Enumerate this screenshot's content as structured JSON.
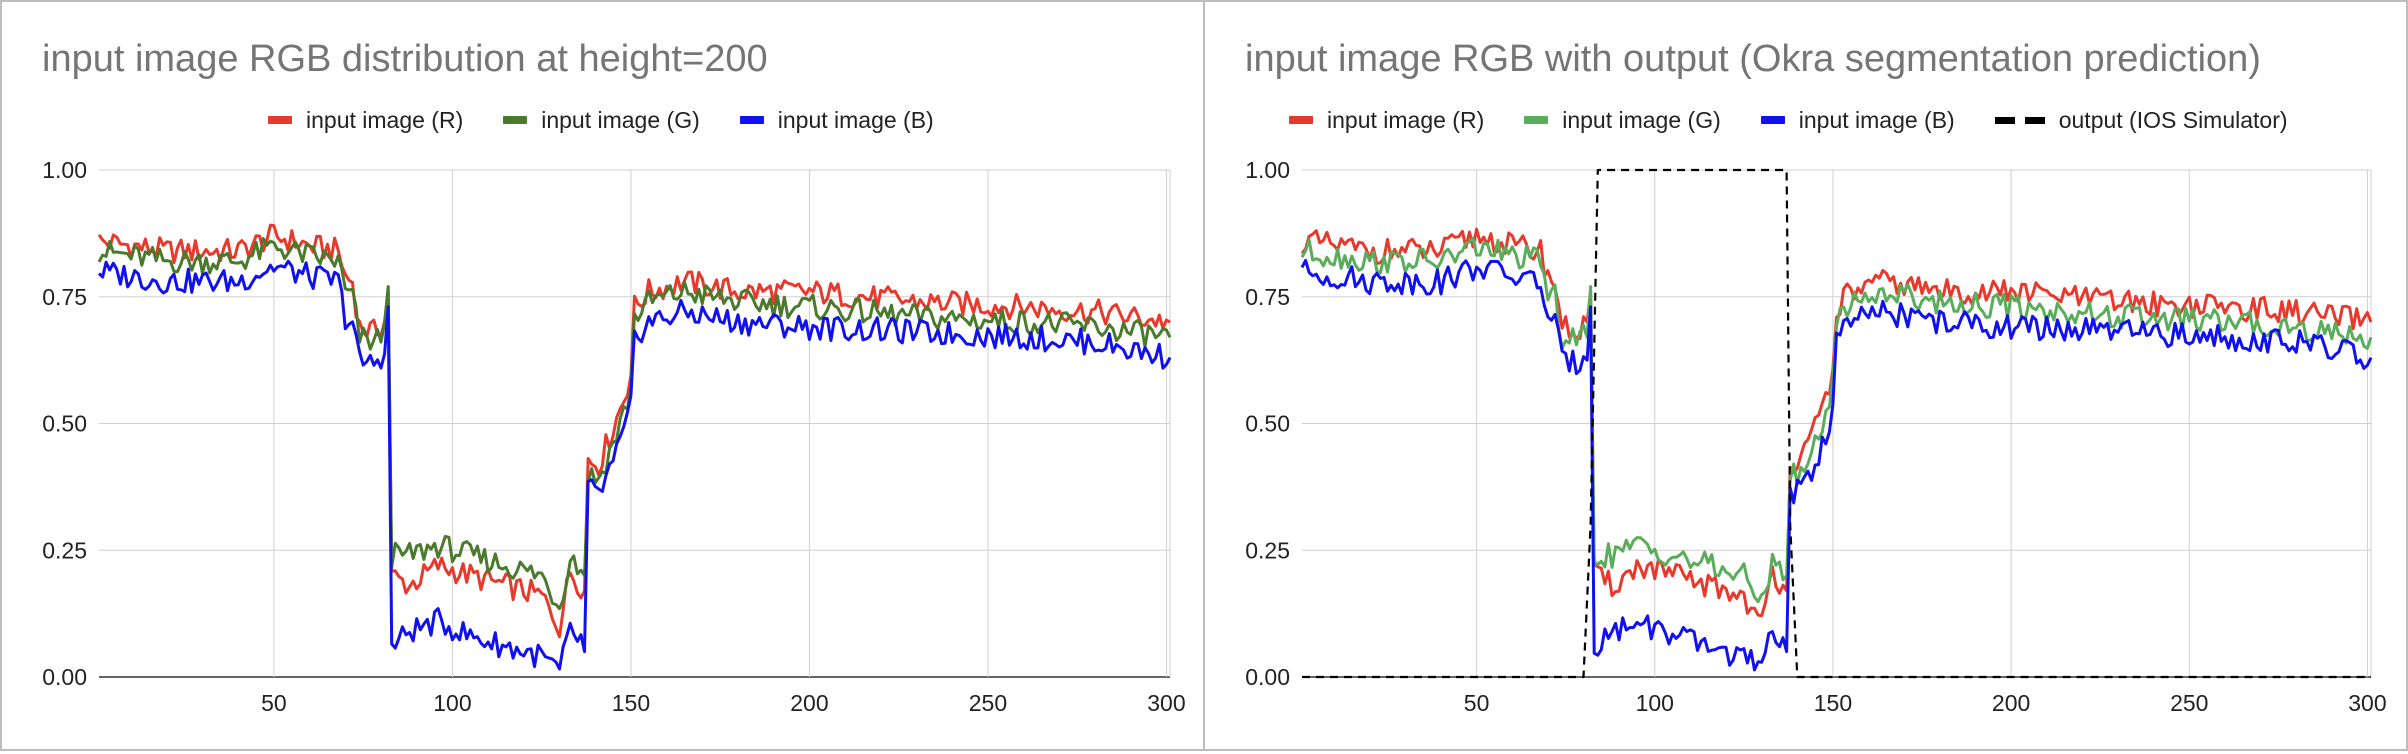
{
  "colors": {
    "red": "#e8392c",
    "dark_green": "#4a7a2c",
    "light_green": "#5aad5a",
    "blue": "#1010f0",
    "black": "#000000",
    "grid": "#d0d0d0",
    "title": "#757575"
  },
  "chart_data": [
    {
      "type": "line",
      "title": "input image RGB distribution at height=200",
      "xlabel": "",
      "ylabel": "",
      "xlim": [
        1,
        301
      ],
      "ylim": [
        0,
        1
      ],
      "x_ticks": [
        50,
        100,
        150,
        200,
        250,
        300
      ],
      "y_ticks": [
        0,
        0.25,
        0.5,
        0.75,
        1
      ],
      "y_tick_labels": [
        "0.00",
        "0.25",
        "0.50",
        "0.75",
        "1.00"
      ],
      "grid": true,
      "legend_position": "top",
      "series": [
        {
          "name": "input image (R)",
          "color": "#e8392c",
          "dashed": false,
          "segments": [
            [
              1,
              0.86
            ],
            [
              20,
              0.84
            ],
            [
              40,
              0.84
            ],
            [
              50,
              0.87
            ],
            [
              60,
              0.85
            ],
            [
              68,
              0.84
            ],
            [
              70,
              0.79
            ],
            [
              72,
              0.78
            ],
            [
              74,
              0.69
            ],
            [
              78,
              0.68
            ],
            [
              81,
              0.7
            ],
            [
              82,
              0.76
            ],
            [
              83,
              0.2
            ],
            [
              88,
              0.18
            ],
            [
              96,
              0.22
            ],
            [
              105,
              0.2
            ],
            [
              115,
              0.18
            ],
            [
              125,
              0.16
            ],
            [
              130,
              0.1
            ],
            [
              133,
              0.21
            ],
            [
              136,
              0.18
            ],
            [
              137,
              0.17
            ],
            [
              138,
              0.43
            ],
            [
              141,
              0.42
            ],
            [
              145,
              0.49
            ],
            [
              148,
              0.55
            ],
            [
              150,
              0.6
            ],
            [
              151,
              0.73
            ],
            [
              155,
              0.76
            ],
            [
              165,
              0.78
            ],
            [
              180,
              0.76
            ],
            [
              200,
              0.76
            ],
            [
              230,
              0.74
            ],
            [
              260,
              0.73
            ],
            [
              280,
              0.72
            ],
            [
              301,
              0.7
            ]
          ]
        },
        {
          "name": "input image (G)",
          "color": "#4a7a2c",
          "dashed": false,
          "segments": [
            [
              1,
              0.84
            ],
            [
              20,
              0.82
            ],
            [
              40,
              0.82
            ],
            [
              50,
              0.85
            ],
            [
              60,
              0.83
            ],
            [
              68,
              0.82
            ],
            [
              70,
              0.76
            ],
            [
              72,
              0.75
            ],
            [
              74,
              0.67
            ],
            [
              78,
              0.66
            ],
            [
              81,
              0.68
            ],
            [
              82,
              0.77
            ],
            [
              83,
              0.24
            ],
            [
              88,
              0.24
            ],
            [
              96,
              0.26
            ],
            [
              105,
              0.24
            ],
            [
              115,
              0.22
            ],
            [
              125,
              0.2
            ],
            [
              130,
              0.14
            ],
            [
              133,
              0.24
            ],
            [
              136,
              0.21
            ],
            [
              137,
              0.2
            ],
            [
              138,
              0.4
            ],
            [
              141,
              0.39
            ],
            [
              145,
              0.46
            ],
            [
              148,
              0.52
            ],
            [
              150,
              0.57
            ],
            [
              151,
              0.71
            ],
            [
              155,
              0.74
            ],
            [
              165,
              0.76
            ],
            [
              180,
              0.74
            ],
            [
              200,
              0.73
            ],
            [
              230,
              0.71
            ],
            [
              260,
              0.7
            ],
            [
              280,
              0.69
            ],
            [
              301,
              0.67
            ]
          ]
        },
        {
          "name": "input image (B)",
          "color": "#1010f0",
          "dashed": false,
          "segments": [
            [
              1,
              0.8
            ],
            [
              20,
              0.78
            ],
            [
              40,
              0.78
            ],
            [
              50,
              0.81
            ],
            [
              60,
              0.79
            ],
            [
              68,
              0.78
            ],
            [
              70,
              0.71
            ],
            [
              72,
              0.7
            ],
            [
              74,
              0.62
            ],
            [
              78,
              0.62
            ],
            [
              81,
              0.64
            ],
            [
              82,
              0.73
            ],
            [
              83,
              0.06
            ],
            [
              88,
              0.09
            ],
            [
              96,
              0.11
            ],
            [
              105,
              0.08
            ],
            [
              115,
              0.06
            ],
            [
              125,
              0.04
            ],
            [
              130,
              0.01
            ],
            [
              133,
              0.09
            ],
            [
              136,
              0.07
            ],
            [
              137,
              0.05
            ],
            [
              138,
              0.37
            ],
            [
              141,
              0.36
            ],
            [
              145,
              0.42
            ],
            [
              148,
              0.48
            ],
            [
              150,
              0.53
            ],
            [
              151,
              0.67
            ],
            [
              155,
              0.7
            ],
            [
              165,
              0.72
            ],
            [
              180,
              0.7
            ],
            [
              200,
              0.69
            ],
            [
              230,
              0.68
            ],
            [
              260,
              0.67
            ],
            [
              280,
              0.66
            ],
            [
              301,
              0.63
            ]
          ]
        }
      ]
    },
    {
      "type": "line",
      "title": "input image RGB with output (Okra segmentation prediction)",
      "xlabel": "",
      "ylabel": "",
      "xlim": [
        1,
        301
      ],
      "ylim": [
        0,
        1
      ],
      "x_ticks": [
        50,
        100,
        150,
        200,
        250,
        300
      ],
      "y_ticks": [
        0,
        0.25,
        0.5,
        0.75,
        1
      ],
      "y_tick_labels": [
        "0.00",
        "0.25",
        "0.50",
        "0.75",
        "1.00"
      ],
      "grid": true,
      "legend_position": "top",
      "series": [
        {
          "name": "input image (R)",
          "color": "#e8392c",
          "dashed": false,
          "segments": [
            [
              1,
              0.86
            ],
            [
              20,
              0.84
            ],
            [
              40,
              0.84
            ],
            [
              50,
              0.87
            ],
            [
              60,
              0.85
            ],
            [
              68,
              0.84
            ],
            [
              70,
              0.79
            ],
            [
              72,
              0.78
            ],
            [
              74,
              0.69
            ],
            [
              78,
              0.68
            ],
            [
              81,
              0.7
            ],
            [
              82,
              0.76
            ],
            [
              83,
              0.2
            ],
            [
              88,
              0.18
            ],
            [
              96,
              0.22
            ],
            [
              105,
              0.2
            ],
            [
              115,
              0.18
            ],
            [
              125,
              0.16
            ],
            [
              130,
              0.1
            ],
            [
              133,
              0.21
            ],
            [
              136,
              0.18
            ],
            [
              137,
              0.17
            ],
            [
              138,
              0.43
            ],
            [
              141,
              0.42
            ],
            [
              145,
              0.49
            ],
            [
              148,
              0.55
            ],
            [
              150,
              0.6
            ],
            [
              151,
              0.73
            ],
            [
              155,
              0.76
            ],
            [
              165,
              0.78
            ],
            [
              180,
              0.76
            ],
            [
              200,
              0.76
            ],
            [
              230,
              0.74
            ],
            [
              260,
              0.73
            ],
            [
              280,
              0.72
            ],
            [
              301,
              0.7
            ]
          ]
        },
        {
          "name": "input image (G)",
          "color": "#5aad5a",
          "dashed": false,
          "segments": [
            [
              1,
              0.84
            ],
            [
              20,
              0.82
            ],
            [
              40,
              0.82
            ],
            [
              50,
              0.85
            ],
            [
              60,
              0.83
            ],
            [
              68,
              0.82
            ],
            [
              70,
              0.76
            ],
            [
              72,
              0.75
            ],
            [
              74,
              0.67
            ],
            [
              78,
              0.66
            ],
            [
              81,
              0.68
            ],
            [
              82,
              0.77
            ],
            [
              83,
              0.24
            ],
            [
              88,
              0.24
            ],
            [
              96,
              0.26
            ],
            [
              105,
              0.24
            ],
            [
              115,
              0.22
            ],
            [
              125,
              0.2
            ],
            [
              130,
              0.14
            ],
            [
              133,
              0.24
            ],
            [
              136,
              0.21
            ],
            [
              137,
              0.2
            ],
            [
              138,
              0.4
            ],
            [
              141,
              0.39
            ],
            [
              145,
              0.46
            ],
            [
              148,
              0.52
            ],
            [
              150,
              0.57
            ],
            [
              151,
              0.71
            ],
            [
              155,
              0.74
            ],
            [
              165,
              0.76
            ],
            [
              180,
              0.74
            ],
            [
              200,
              0.73
            ],
            [
              230,
              0.71
            ],
            [
              260,
              0.7
            ],
            [
              280,
              0.69
            ],
            [
              301,
              0.67
            ]
          ]
        },
        {
          "name": "input image (B)",
          "color": "#1010f0",
          "dashed": false,
          "segments": [
            [
              1,
              0.8
            ],
            [
              20,
              0.78
            ],
            [
              40,
              0.78
            ],
            [
              50,
              0.81
            ],
            [
              60,
              0.79
            ],
            [
              68,
              0.78
            ],
            [
              70,
              0.71
            ],
            [
              72,
              0.7
            ],
            [
              74,
              0.62
            ],
            [
              78,
              0.62
            ],
            [
              81,
              0.64
            ],
            [
              82,
              0.73
            ],
            [
              83,
              0.06
            ],
            [
              88,
              0.09
            ],
            [
              96,
              0.11
            ],
            [
              105,
              0.08
            ],
            [
              115,
              0.06
            ],
            [
              125,
              0.04
            ],
            [
              130,
              0.01
            ],
            [
              133,
              0.09
            ],
            [
              136,
              0.07
            ],
            [
              137,
              0.05
            ],
            [
              138,
              0.37
            ],
            [
              141,
              0.36
            ],
            [
              145,
              0.42
            ],
            [
              148,
              0.48
            ],
            [
              150,
              0.53
            ],
            [
              151,
              0.67
            ],
            [
              155,
              0.7
            ],
            [
              165,
              0.72
            ],
            [
              180,
              0.7
            ],
            [
              200,
              0.69
            ],
            [
              230,
              0.68
            ],
            [
              260,
              0.67
            ],
            [
              280,
              0.66
            ],
            [
              301,
              0.63
            ]
          ]
        },
        {
          "name": "output (IOS Simulator)",
          "color": "#000000",
          "dashed": true,
          "segments": [
            [
              1,
              0
            ],
            [
              80,
              0
            ],
            [
              82,
              0.3
            ],
            [
              84,
              1
            ],
            [
              137,
              1
            ],
            [
              138,
              0.3
            ],
            [
              140,
              0
            ],
            [
              301,
              0
            ]
          ]
        }
      ]
    }
  ]
}
